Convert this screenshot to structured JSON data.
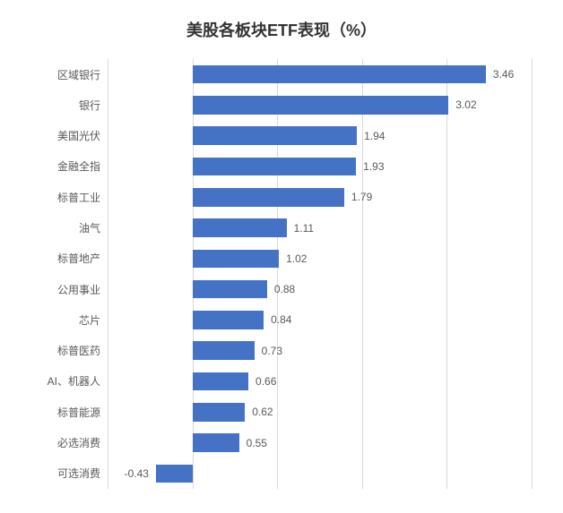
{
  "chart": {
    "type": "bar-horizontal",
    "title": "美股各板块ETF表现（%）",
    "title_fontsize": 18,
    "title_fontweight": "bold",
    "title_color": "#333333",
    "background_color": "#ffffff",
    "grid_color": "#d9d9d9",
    "bar_color": "#4472c4",
    "label_fontsize": 12,
    "label_color": "#595959",
    "xmin": -1,
    "xmax": 4,
    "xtick_step": 1,
    "bar_gap_ratio": 0.4,
    "categories": [
      "区域银行",
      "银行",
      "美国光伏",
      "金融全指",
      "标普工业",
      "油气",
      "标普地产",
      "公用事业",
      "芯片",
      "标普医药",
      "AI、机器人",
      "标普能源",
      "必选消费",
      "可选消费"
    ],
    "values": [
      3.46,
      3.02,
      1.94,
      1.93,
      1.79,
      1.11,
      1.02,
      0.88,
      0.84,
      0.73,
      0.66,
      0.62,
      0.55,
      -0.43
    ]
  }
}
